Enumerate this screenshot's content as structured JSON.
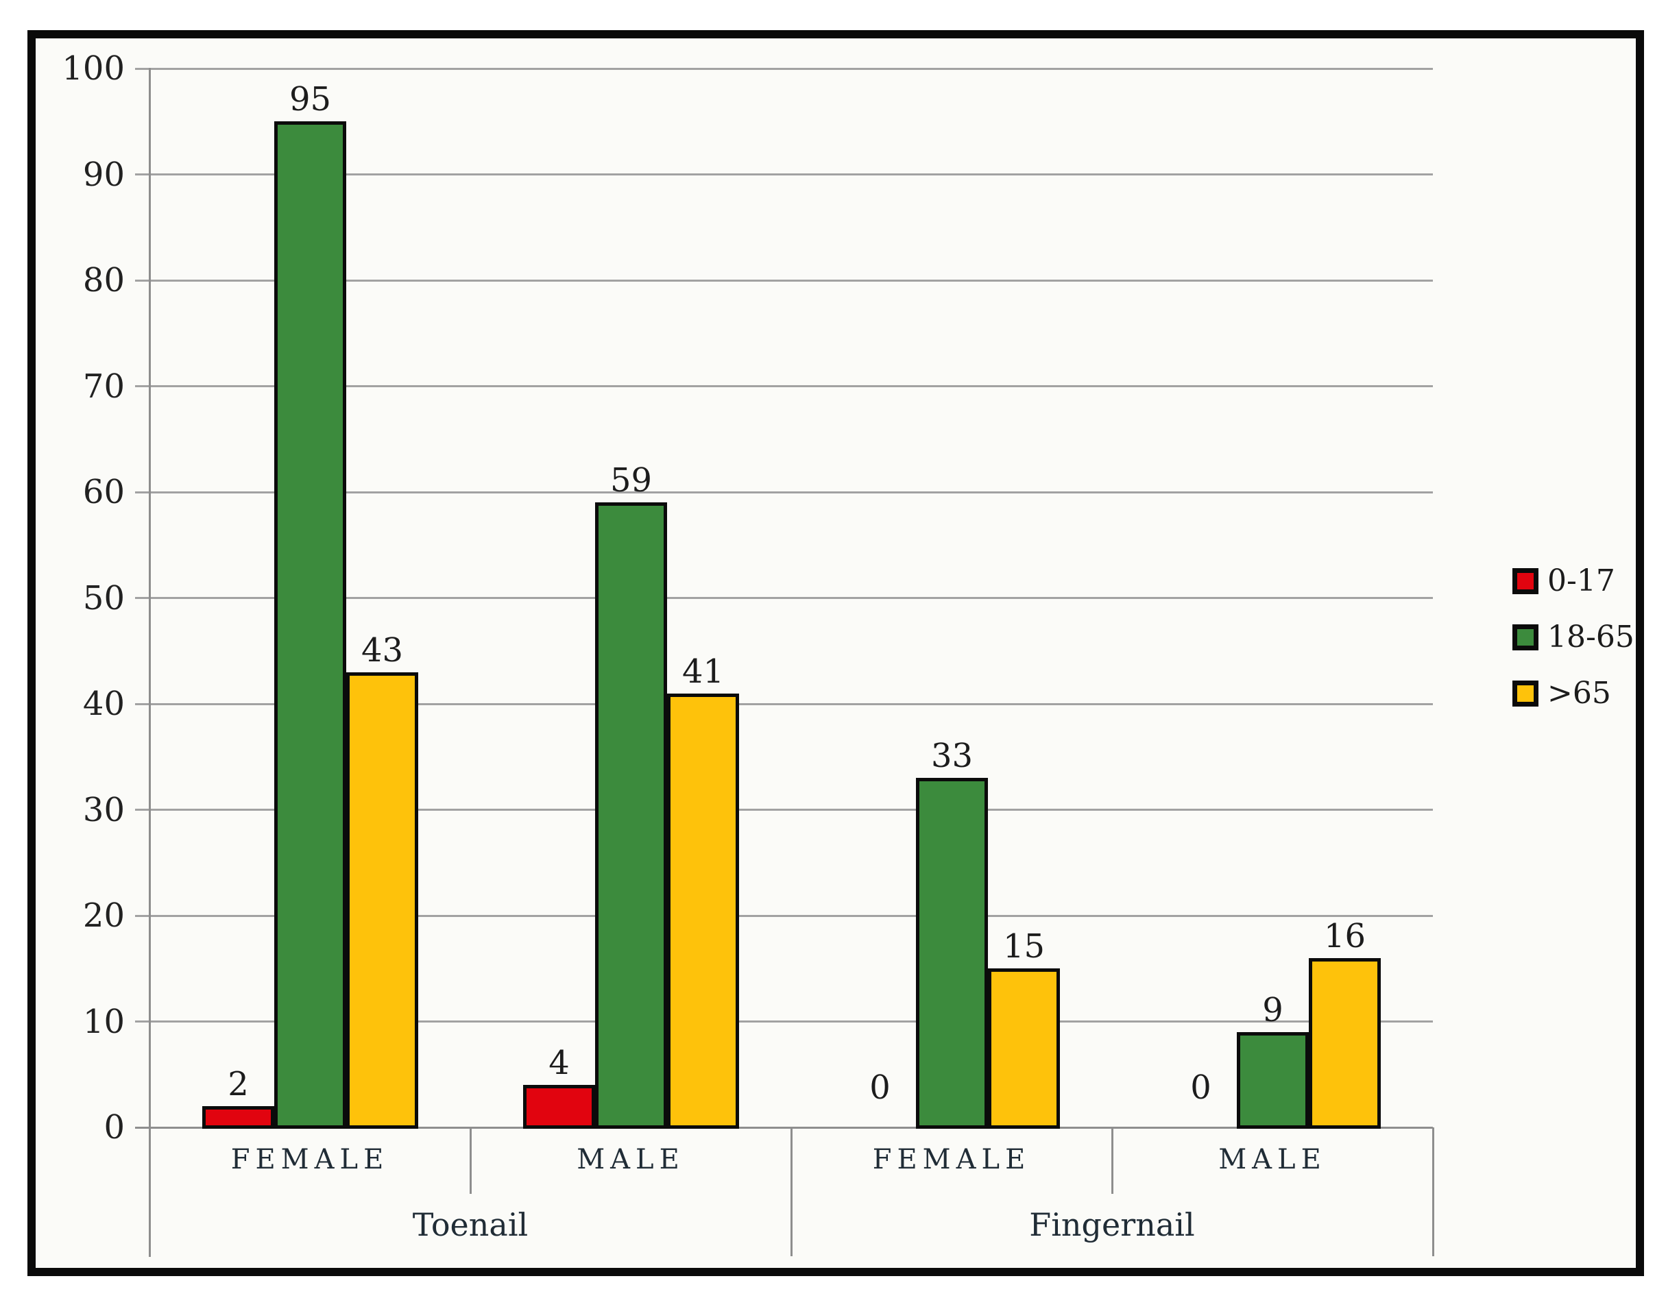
{
  "chart_data": {
    "type": "bar",
    "categories": [
      {
        "label": "FEMALE",
        "group": "Toenail"
      },
      {
        "label": "MALE",
        "group": "Toenail"
      },
      {
        "label": "FEMALE",
        "group": "Fingernail"
      },
      {
        "label": "MALE",
        "group": "Fingernail"
      }
    ],
    "group_labels": [
      "Toenail",
      "Fingernail"
    ],
    "series": [
      {
        "name": "0-17",
        "color": "#e1040f",
        "values": [
          2,
          4,
          0,
          0
        ]
      },
      {
        "name": "18-65",
        "color": "#3c8b3d",
        "values": [
          95,
          59,
          33,
          9
        ]
      },
      {
        "name": ">65",
        "color": "#fec20b",
        "values": [
          43,
          41,
          15,
          16
        ]
      }
    ],
    "ylim": [
      0,
      100
    ],
    "ytick_step": 10,
    "ytick_labels": [
      "0",
      "10",
      "20",
      "30",
      "40",
      "50",
      "60",
      "70",
      "80",
      "90",
      "100"
    ],
    "grid": true,
    "data_labels": true,
    "legend_position": "right",
    "gridline_color": "#a2a2a2",
    "axis_line_color": "#8e8e8e",
    "bar_border_color": "#0b0b0b",
    "frame_border_color": "#0a0a0a",
    "background_color": "#fbfbf8"
  }
}
